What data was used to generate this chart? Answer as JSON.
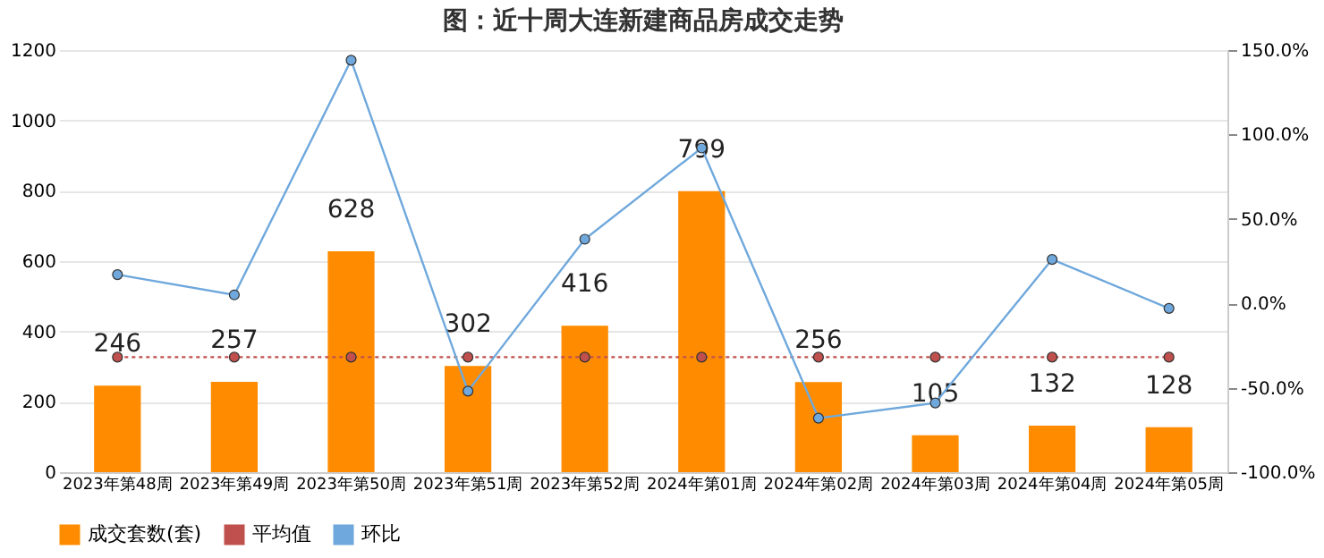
{
  "chart_data": {
    "type": "bar",
    "title": "图：近十周大连新建商品房成交走势",
    "categories": [
      "2023年第48周",
      "2023年第49周",
      "2023年第50周",
      "2023年第51周",
      "2023年第52周",
      "2024年第01周",
      "2024年第02周",
      "2024年第03周",
      "2024年第04周",
      "2024年第05周"
    ],
    "series": [
      {
        "name": "成交套数(套)",
        "color": "#ff8c00",
        "values": [
          246,
          257,
          628,
          302,
          416,
          799,
          256,
          105,
          132,
          128
        ],
        "data_labels": true
      },
      {
        "name": "平均值",
        "type": "line",
        "color": "#c0504d",
        "line_style": "dotted",
        "marker": "circle",
        "values": [
          327,
          327,
          327,
          327,
          327,
          327,
          327,
          327,
          327,
          327
        ]
      },
      {
        "name": "环比",
        "type": "line",
        "axis": "y2",
        "color": "#6fa8dc",
        "line_style": "solid",
        "marker": "circle",
        "values": [
          17,
          5,
          144,
          -52,
          38,
          92,
          -68,
          -59,
          26,
          -3
        ]
      }
    ],
    "ylim": [
      0,
      1200
    ],
    "yticks": [
      0,
      200,
      400,
      600,
      800,
      1000,
      1200
    ],
    "y2lim": [
      -100,
      150
    ],
    "y2ticks": [
      {
        "value": -100,
        "label": "-100.0%"
      },
      {
        "value": -50,
        "label": "-50.0%"
      },
      {
        "value": 0,
        "label": "0.0%"
      },
      {
        "value": 50,
        "label": "50.0%"
      },
      {
        "value": 100,
        "label": "100.0%"
      },
      {
        "value": 150,
        "label": "150.0%"
      }
    ],
    "grid": "y",
    "legend": "bottom"
  }
}
